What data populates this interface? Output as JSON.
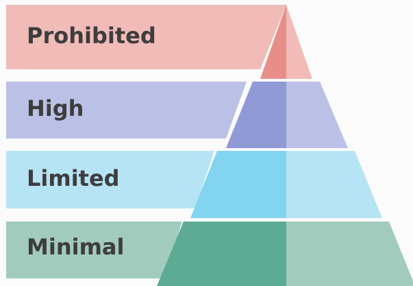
{
  "tiers": [
    {
      "label": "Prohibited",
      "color_band": "#f1bbb7",
      "color_left": "#e88e89",
      "color_right": "#f1bbb7"
    },
    {
      "label": "High",
      "color_band": "#bbc1e6",
      "color_left": "#8f9ad7",
      "color_right": "#bbc1e6"
    },
    {
      "label": "Limited",
      "color_band": "#b6e4f4",
      "color_left": "#82d4f0",
      "color_right": "#b6e4f4"
    },
    {
      "label": "Minimal",
      "color_band": "#a1ccbd",
      "color_left": "#5dab95",
      "color_right": "#a1ccbd"
    }
  ]
}
